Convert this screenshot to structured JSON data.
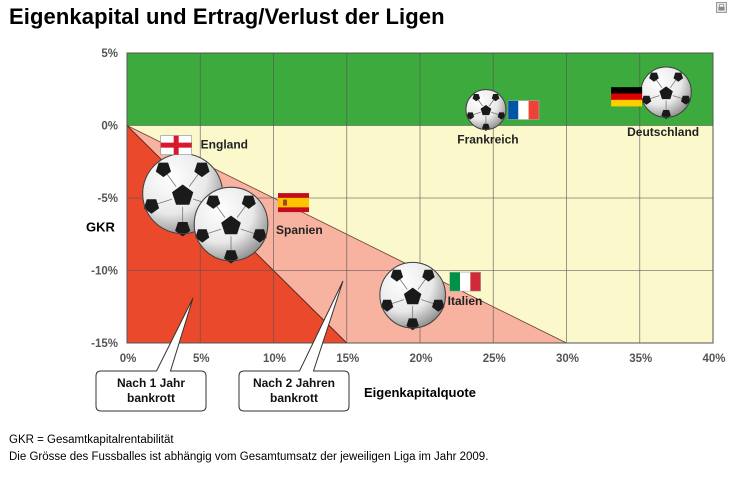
{
  "page": {
    "title": "Eigenkapital und Ertrag/Verlust der Ligen",
    "footnote_1": "GKR = Gesamtkapitalrentabilität",
    "footnote_2": "Die Grösse des Fussballes ist abhängig vom Gesamtumsatz der jeweiligen Liga im Jahr 2009."
  },
  "chart_data": {
    "type": "scatter",
    "xlabel": "Eigenkapitalquote",
    "ylabel": "GKR",
    "xlim": [
      0,
      40
    ],
    "ylim": [
      -15,
      5
    ],
    "x_ticks": [
      0,
      5,
      10,
      15,
      20,
      25,
      30,
      35,
      40
    ],
    "y_ticks": [
      5,
      0,
      -5,
      -10,
      -15
    ],
    "x_tick_labels": [
      "0%",
      "5%",
      "10%",
      "15%",
      "20%",
      "25%",
      "30%",
      "35%",
      "40%"
    ],
    "y_tick_labels": [
      "5%",
      "0%",
      "-5%",
      "-10%",
      "-15%"
    ],
    "size_note": "ball size = total league revenue 2009",
    "colors": {
      "positive_zone": "#3caa3c",
      "negative_zone": "#fbf8cc",
      "zone_2_years": "#f7b3a0",
      "zone_1_year": "#ea4a2b",
      "gridline": "#555555"
    },
    "zones": [
      {
        "label": "Nach 1 Jahr bankrott",
        "boundary": [
          [
            0,
            0
          ],
          [
            15,
            -15
          ]
        ],
        "callout_lines": [
          "Nach 1 Jahr",
          "bankrott"
        ]
      },
      {
        "label": "Nach 2 Jahren bankrott",
        "boundary": [
          [
            0,
            0
          ],
          [
            30,
            -15
          ]
        ],
        "callout_lines": [
          "Nach 2 Jahren",
          "bankrott"
        ]
      }
    ],
    "points": [
      {
        "name": "England",
        "x": 3.8,
        "y": -4.7,
        "size": 1.0,
        "flag": "england"
      },
      {
        "name": "Spanien",
        "x": 7.1,
        "y": -6.8,
        "size": 0.92,
        "flag": "spain"
      },
      {
        "name": "Italien",
        "x": 19.5,
        "y": -11.7,
        "size": 0.82,
        "flag": "italy"
      },
      {
        "name": "Frankreich",
        "x": 24.5,
        "y": 1.1,
        "size": 0.5,
        "flag": "france"
      },
      {
        "name": "Deutschland",
        "x": 36.8,
        "y": 2.3,
        "size": 0.63,
        "flag": "germany"
      }
    ]
  }
}
